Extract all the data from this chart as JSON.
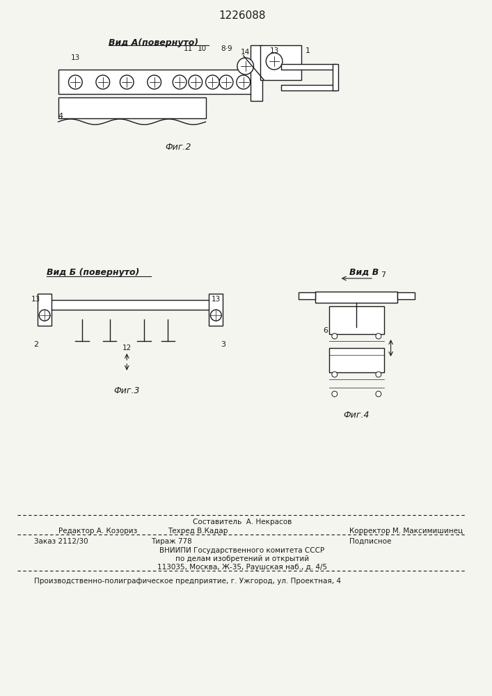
{
  "patent_number": "1226088",
  "background_color": "#f5f5f0",
  "fig2_label": "Вид А(повернуто)",
  "fig2_caption": "Фиг.2",
  "fig3_label": "Вид Б (повернуто)",
  "fig3_caption": "Фиг.3",
  "fig4_label": "Вид В",
  "fig4_caption": "Фиг.4",
  "footer_editor": "Редактор А. Козориз",
  "footer_compiler_label": "Составитель  А. Некрасов",
  "footer_techred": "Техред В.Кадар",
  "footer_corrector": "Корректор М. Максимишинец",
  "footer_order": "Заказ 2112/30",
  "footer_circulation": "Тираж 778",
  "footer_subscription": "Подписное",
  "footer_vnipi1": "ВНИИПИ Государственного комитета СССР",
  "footer_vnipi2": "по делам изобретений и открытий",
  "footer_vnipi3": "113035, Москва, Ж-35, Раушская наб., д. 4/5",
  "footer_bottom": "Производственно-полиграфическое предприятие, г. Ужгород, ул. Проектная, 4"
}
